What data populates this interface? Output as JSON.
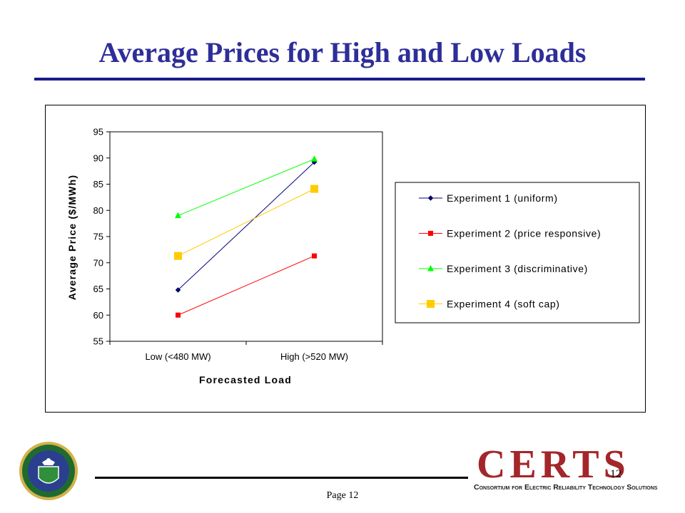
{
  "slide": {
    "title": "Average Prices for High and Low Loads",
    "page_label": "Page 12",
    "slide_number": "12"
  },
  "logo": {
    "main_text": "CERTS",
    "subtitle": "Consortium for Electric Reliability Technology Solutions"
  },
  "chart_data": {
    "type": "line",
    "title": "",
    "xlabel": "Forecasted Load",
    "ylabel": "Average Price ($/MWh)",
    "categories": [
      "Low (<480 MW)",
      "High (>520 MW)"
    ],
    "ylim": [
      55,
      95
    ],
    "yticks": [
      55,
      60,
      65,
      70,
      75,
      80,
      85,
      90,
      95
    ],
    "grid": false,
    "legend_position": "right",
    "series": [
      {
        "name": "Experiment 1 (uniform)",
        "values": [
          64.8,
          89.2
        ],
        "color": "#000080",
        "marker": "diamond"
      },
      {
        "name": "Experiment 2 (price responsive)",
        "values": [
          60.0,
          71.3
        ],
        "color": "#ff0000",
        "marker": "square"
      },
      {
        "name": "Experiment 3 (discriminative)",
        "values": [
          79.0,
          89.8
        ],
        "color": "#00ff00",
        "marker": "triangle"
      },
      {
        "name": "Experiment 4 (soft cap)",
        "values": [
          71.3,
          84.1
        ],
        "color": "#ffcc00",
        "marker": "square-large"
      }
    ]
  }
}
